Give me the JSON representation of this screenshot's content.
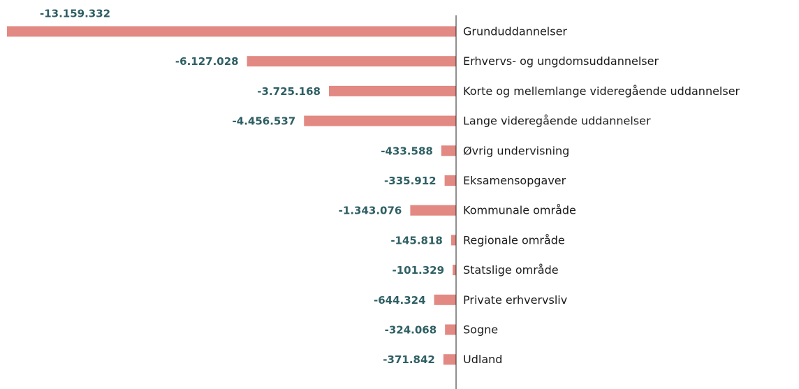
{
  "chart_data": {
    "type": "bar",
    "orientation": "horizontal",
    "categories": [
      "Grunduddannelser",
      "Erhvervs- og ungdomsuddannelser",
      "Korte og mellemlange videregående uddannelser",
      "Lange videregående uddannelser",
      "Øvrig undervisning",
      "Eksamensopgaver",
      "Kommunale område",
      "Regionale område",
      "Statslige område",
      "Private erhvervsliv",
      "Sogne",
      "Udland"
    ],
    "values": [
      -13159332,
      -6127028,
      -3725168,
      -4456537,
      -433588,
      -335912,
      -1343076,
      -145818,
      -101329,
      -644324,
      -324068,
      -371842
    ],
    "value_labels": [
      "-13.159.332",
      "-6.127.028",
      "-3.725.168",
      "-4.456.537",
      "-433.588",
      "-335.912",
      "-1.343.076",
      "-145.818",
      "-101.329",
      "-644.324",
      "-324.068",
      "-371.842"
    ],
    "color": "#e38983",
    "xlim": [
      -13200000,
      0
    ]
  }
}
